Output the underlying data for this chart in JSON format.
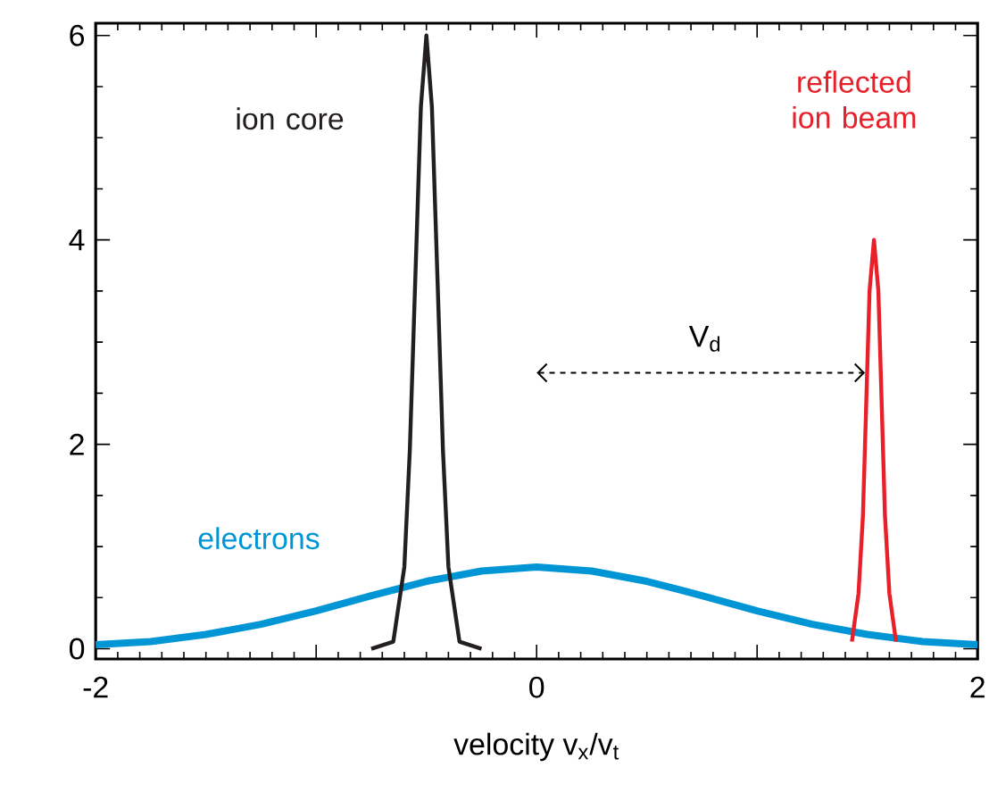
{
  "chart_data": {
    "type": "line",
    "xlabel": "velocity v$_{x}$/v$_{t}$",
    "xlim": [
      -2,
      2
    ],
    "ylim": [
      -0.1,
      6.12
    ],
    "xticks": [
      -2,
      {
        "value": -1,
        "label": null
      },
      0,
      {
        "value": 1,
        "label": null
      },
      2
    ],
    "yticks": [
      0,
      2,
      4,
      6
    ],
    "grid": false,
    "marker": "none",
    "line_style": "solid",
    "annotations": [
      "V$_{d}$"
    ],
    "series": [
      {
        "name": "electrons",
        "color": "#0096d6",
        "x": [
          -2,
          -1.75,
          -1.5,
          -1.25,
          -1,
          -0.75,
          -0.5,
          -0.25,
          0,
          0.25,
          0.5,
          0.75,
          1,
          1.25,
          1.5,
          1.75,
          2
        ],
        "values": [
          0.04,
          0.07,
          0.14,
          0.24,
          0.37,
          0.52,
          0.66,
          0.76,
          0.8,
          0.76,
          0.66,
          0.52,
          0.37,
          0.24,
          0.14,
          0.07,
          0.04
        ]
      },
      {
        "name": "ion core",
        "color": "#231f20",
        "x": [
          -0.75,
          -0.65,
          -0.6,
          -0.575,
          -0.55,
          -0.525,
          -0.5,
          -0.475,
          -0.45,
          -0.425,
          -0.4,
          -0.35,
          -0.25
        ],
        "values": [
          0,
          0.07,
          0.8,
          1.95,
          3.64,
          5.3,
          6,
          5.3,
          3.64,
          1.95,
          0.8,
          0.07,
          0
        ]
      },
      {
        "name": "reflected ion beam",
        "color": "#e8202a",
        "x": [
          1.43,
          1.46,
          1.48,
          1.495,
          1.51,
          1.53,
          1.55,
          1.565,
          1.58,
          1.6,
          1.63
        ],
        "values": [
          0.07,
          0.54,
          1.3,
          2.4,
          3.5,
          4,
          3.5,
          2.4,
          1.3,
          0.54,
          0.07
        ]
      }
    ]
  }
}
